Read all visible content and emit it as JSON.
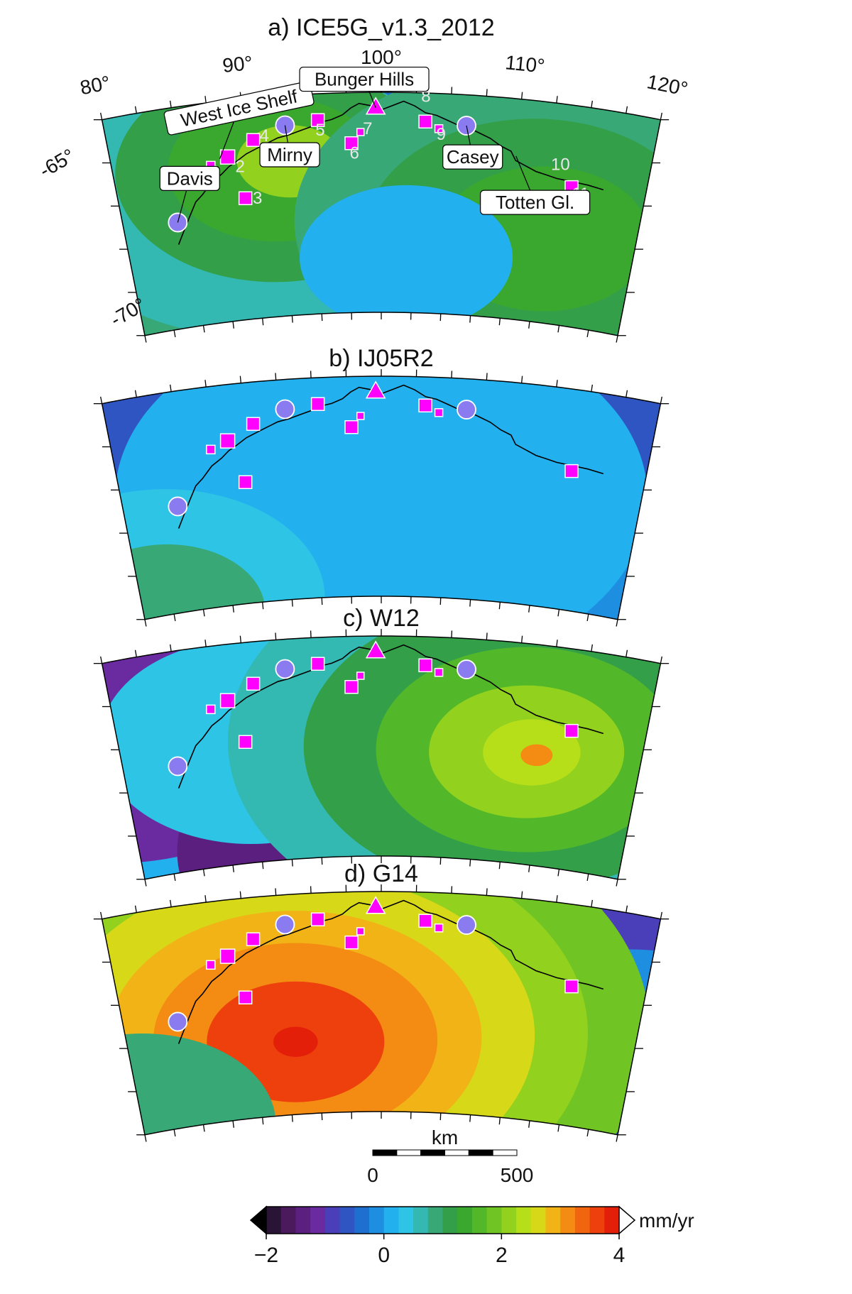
{
  "panels": [
    {
      "title": "a) ICE5G_v1.3_2012"
    },
    {
      "title": "b) IJ05R2"
    },
    {
      "title": "c) W12"
    },
    {
      "title": "d) G14"
    }
  ],
  "lon_labels": [
    "80°",
    "90°",
    "100°",
    "110°",
    "120°"
  ],
  "lat_labels": [
    "-65°",
    "-70°"
  ],
  "place_labels": [
    "Davis",
    "West Ice Shelf",
    "Mirny",
    "Bunger Hills",
    "Casey",
    "Totten Gl."
  ],
  "site_numbers": [
    "1",
    "2",
    "3",
    "4",
    "5",
    "6",
    "7",
    "8",
    "9",
    "10",
    "11"
  ],
  "scale_bar": {
    "title": "km",
    "ticks": [
      "0",
      "500"
    ]
  },
  "colorbar": {
    "unit": "mm/yr",
    "ticks": [
      "−2",
      "0",
      "2",
      "4"
    ],
    "range": [
      -2,
      4
    ],
    "colors": [
      "#000000",
      "#2a1436",
      "#4a1a5c",
      "#5b1f7f",
      "#6a2aa0",
      "#4a3fb8",
      "#2f55c2",
      "#1f6fd0",
      "#1e8ee0",
      "#22b0ee",
      "#2dc4e6",
      "#33b8b2",
      "#38a877",
      "#33a049",
      "#3aa82e",
      "#52b82a",
      "#70c424",
      "#92d11e",
      "#b6df1a",
      "#d7d818",
      "#f2b316",
      "#f48b12",
      "#f2650f",
      "#ee400c",
      "#e41f09"
    ]
  },
  "symbol_legend": {
    "stations": "circle",
    "sites": "square",
    "bunger_hills": "triangle"
  }
}
